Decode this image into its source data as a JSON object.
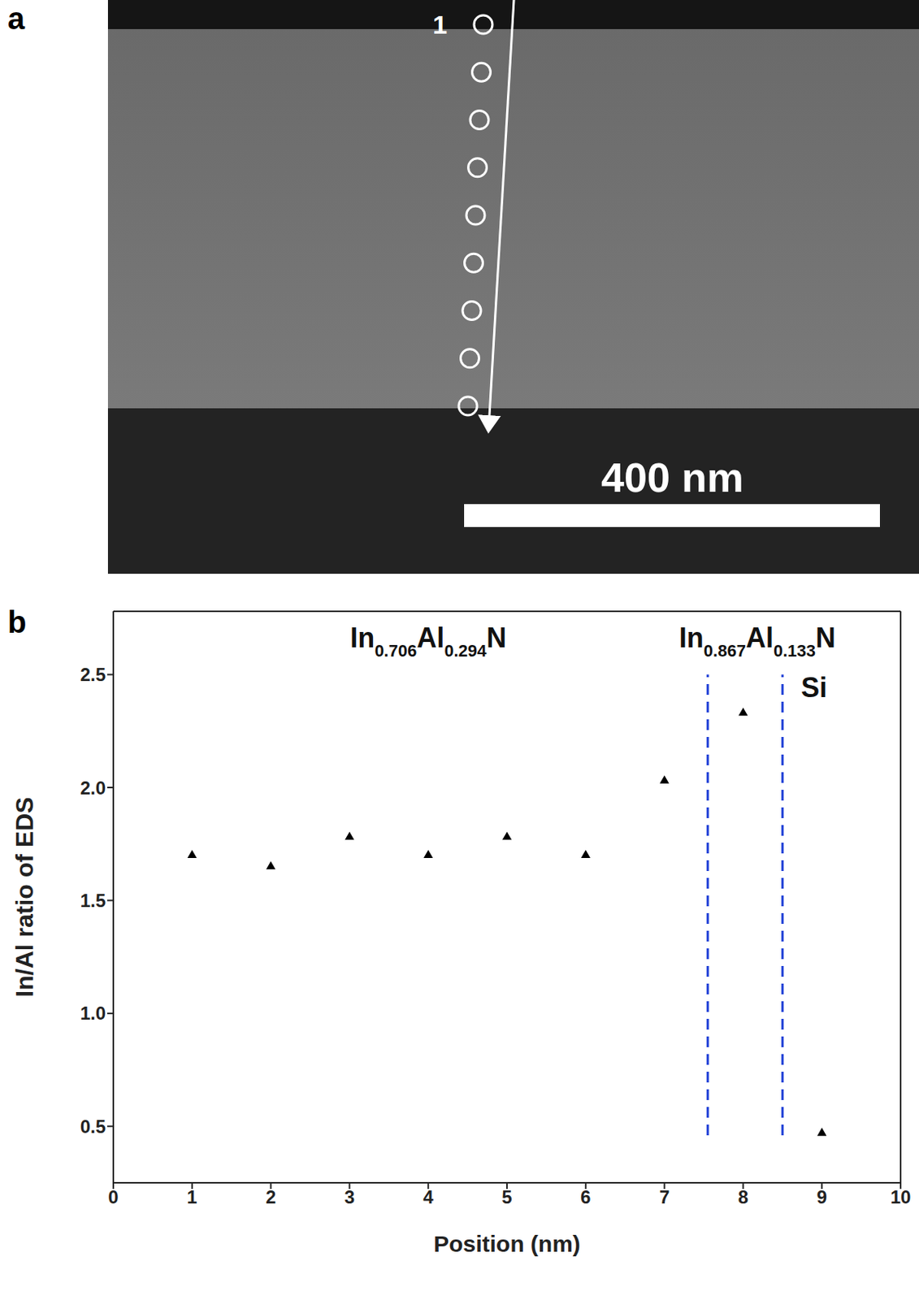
{
  "image_panel": {
    "label": "a",
    "point_label": "1",
    "scale_bar": "400 nm"
  },
  "chart_data": {
    "label": "b",
    "type": "scatter",
    "x_label": "Position (nm)",
    "y_label": "In/Al ratio of EDS",
    "x": [
      1,
      2,
      3,
      4,
      5,
      6,
      7,
      8,
      9
    ],
    "values": [
      1.7,
      1.65,
      1.78,
      1.7,
      1.78,
      1.7,
      2.03,
      2.33,
      0.47
    ],
    "color": "#000000",
    "marker": "triangle",
    "xlim": [
      0,
      10
    ],
    "xticks": [
      0,
      1,
      2,
      3,
      4,
      5,
      6,
      7,
      8,
      9,
      10
    ],
    "ylim": [
      0.25,
      2.78
    ],
    "yticks": [
      0.5,
      {
        "value": 1,
        "label": "1.0"
      },
      1.5,
      {
        "value": 2,
        "label": "2.0"
      },
      2.5
    ],
    "annotations": [
      {
        "text": "In0.706Al0.294N",
        "x": 4.0,
        "y": 2.62
      },
      {
        "text": "In0.867Al0.133N",
        "x": 8.18,
        "y": 2.62
      },
      {
        "text": "Si",
        "x": 8.9,
        "y": 2.4
      }
    ],
    "dividers": {
      "x": [
        7.55,
        8.5
      ],
      "y": [
        0.46,
        2.5
      ],
      "color": "#1f3fd6",
      "line_style": "dashed"
    }
  }
}
